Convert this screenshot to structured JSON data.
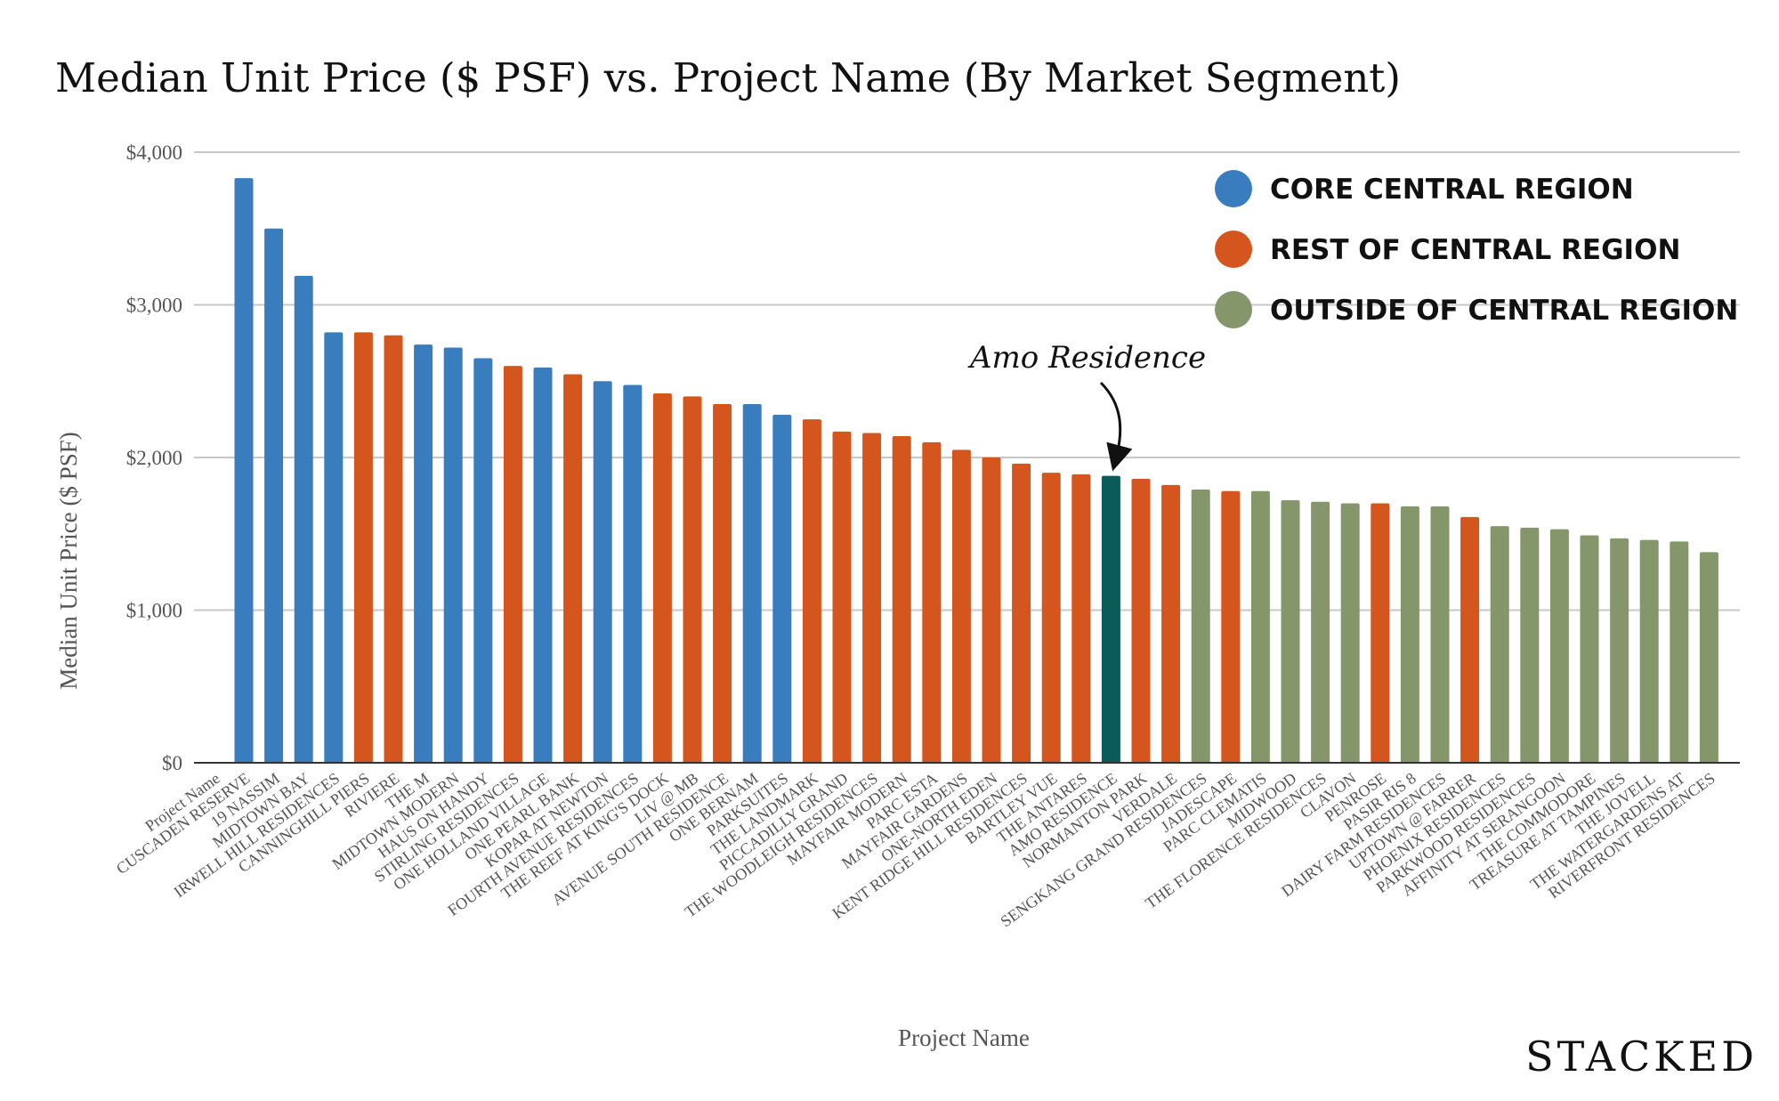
{
  "chart_data": {
    "type": "bar",
    "title": "Median Unit Price ($ PSF) vs. Project Name (By Market Segment)",
    "xlabel": "Project Name",
    "ylabel": "Median Unit Price ($ PSF)",
    "ylim": [
      0,
      4000
    ],
    "yticks": [
      "$0",
      "$1,000",
      "$2,000",
      "$3,000",
      "$4,000"
    ],
    "ytick_values": [
      0,
      1000,
      2000,
      3000,
      4000
    ],
    "first_tick_label": "Project Name",
    "grid": true,
    "legend_position": "top-right",
    "legend": [
      {
        "label": "CORE CENTRAL REGION",
        "color": "#3a7dbf"
      },
      {
        "label": "REST OF CENTRAL REGION",
        "color": "#d4561e"
      },
      {
        "label": "OUTSIDE OF CENTRAL REGION",
        "color": "#85976a"
      }
    ],
    "highlight_color": "#0b5c58",
    "categories": [
      "CUSCADEN RESERVE",
      "19 NASSIM",
      "MIDTOWN BAY",
      "IRWELL HILL RESIDENCES",
      "CANNINGHILL PIERS",
      "RIVIERE",
      "THE M",
      "MIDTOWN MODERN",
      "HAUS ON HANDY",
      "STIRLING RESIDENCES",
      "ONE HOLLAND VILLAGE",
      "ONE PEARL BANK",
      "KOPAR AT NEWTON",
      "FOURTH AVENUE RESIDENCES",
      "THE REEF AT KING'S DOCK",
      "LIV @ MB",
      "AVENUE SOUTH RESIDENCE",
      "ONE BERNAM",
      "PARKSUITES",
      "THE LANDMARK",
      "PICCADILLY GRAND",
      "THE WOODLEIGH RESIDENCES",
      "MAYFAIR MODERN",
      "PARC ESTA",
      "MAYFAIR GARDENS",
      "ONE-NORTH EDEN",
      "KENT RIDGE HILL RESIDENCES",
      "BARTLEY VUE",
      "THE ANTARES",
      "AMO RESIDENCE",
      "NORMANTON PARK",
      "VERDALE",
      "SENGKANG GRAND RESIDENCES",
      "JADESCAPE",
      "PARC CLEMATIS",
      "MIDWOOD",
      "THE FLORENCE RESIDENCES",
      "CLAVON",
      "PENROSE",
      "PASIR RIS 8",
      "DAIRY FARM RESIDENCES",
      "UPTOWN @ FARRER",
      "PHOENIX RESIDENCES",
      "PARKWOOD RESIDENCES",
      "AFFINITY AT SERANGOON",
      "THE COMMODORE",
      "TREASURE AT TAMPINES",
      "THE JOVELL",
      "THE WATERGARDENS AT",
      "RIVERFRONT RESIDENCES"
    ],
    "values": [
      3830,
      3500,
      3190,
      2820,
      2820,
      2800,
      2740,
      2720,
      2650,
      2600,
      2590,
      2545,
      2500,
      2475,
      2420,
      2400,
      2350,
      2350,
      2280,
      2250,
      2170,
      2160,
      2140,
      2100,
      2050,
      2000,
      1960,
      1900,
      1890,
      1880,
      1860,
      1820,
      1790,
      1780,
      1780,
      1720,
      1710,
      1700,
      1700,
      1680,
      1680,
      1610,
      1550,
      1540,
      1530,
      1490,
      1470,
      1460,
      1450,
      1380
    ],
    "segments": [
      "CCR",
      "CCR",
      "CCR",
      "CCR",
      "RCR",
      "RCR",
      "CCR",
      "CCR",
      "CCR",
      "RCR",
      "CCR",
      "RCR",
      "CCR",
      "CCR",
      "RCR",
      "RCR",
      "RCR",
      "CCR",
      "CCR",
      "RCR",
      "RCR",
      "RCR",
      "RCR",
      "RCR",
      "RCR",
      "RCR",
      "RCR",
      "RCR",
      "RCR",
      "HIGHLIGHT",
      "RCR",
      "RCR",
      "OCR",
      "RCR",
      "OCR",
      "OCR",
      "OCR",
      "OCR",
      "RCR",
      "OCR",
      "OCR",
      "RCR",
      "OCR",
      "OCR",
      "OCR",
      "OCR",
      "OCR",
      "OCR",
      "OCR",
      "OCR"
    ],
    "segment_colors": {
      "CCR": "#3a7dbf",
      "RCR": "#d4561e",
      "OCR": "#85976a",
      "HIGHLIGHT": "#0b5c58"
    },
    "annotation": {
      "text": "Amo Residence",
      "target": "AMO RESIDENCE"
    }
  },
  "brand": {
    "name": "STACKED"
  }
}
